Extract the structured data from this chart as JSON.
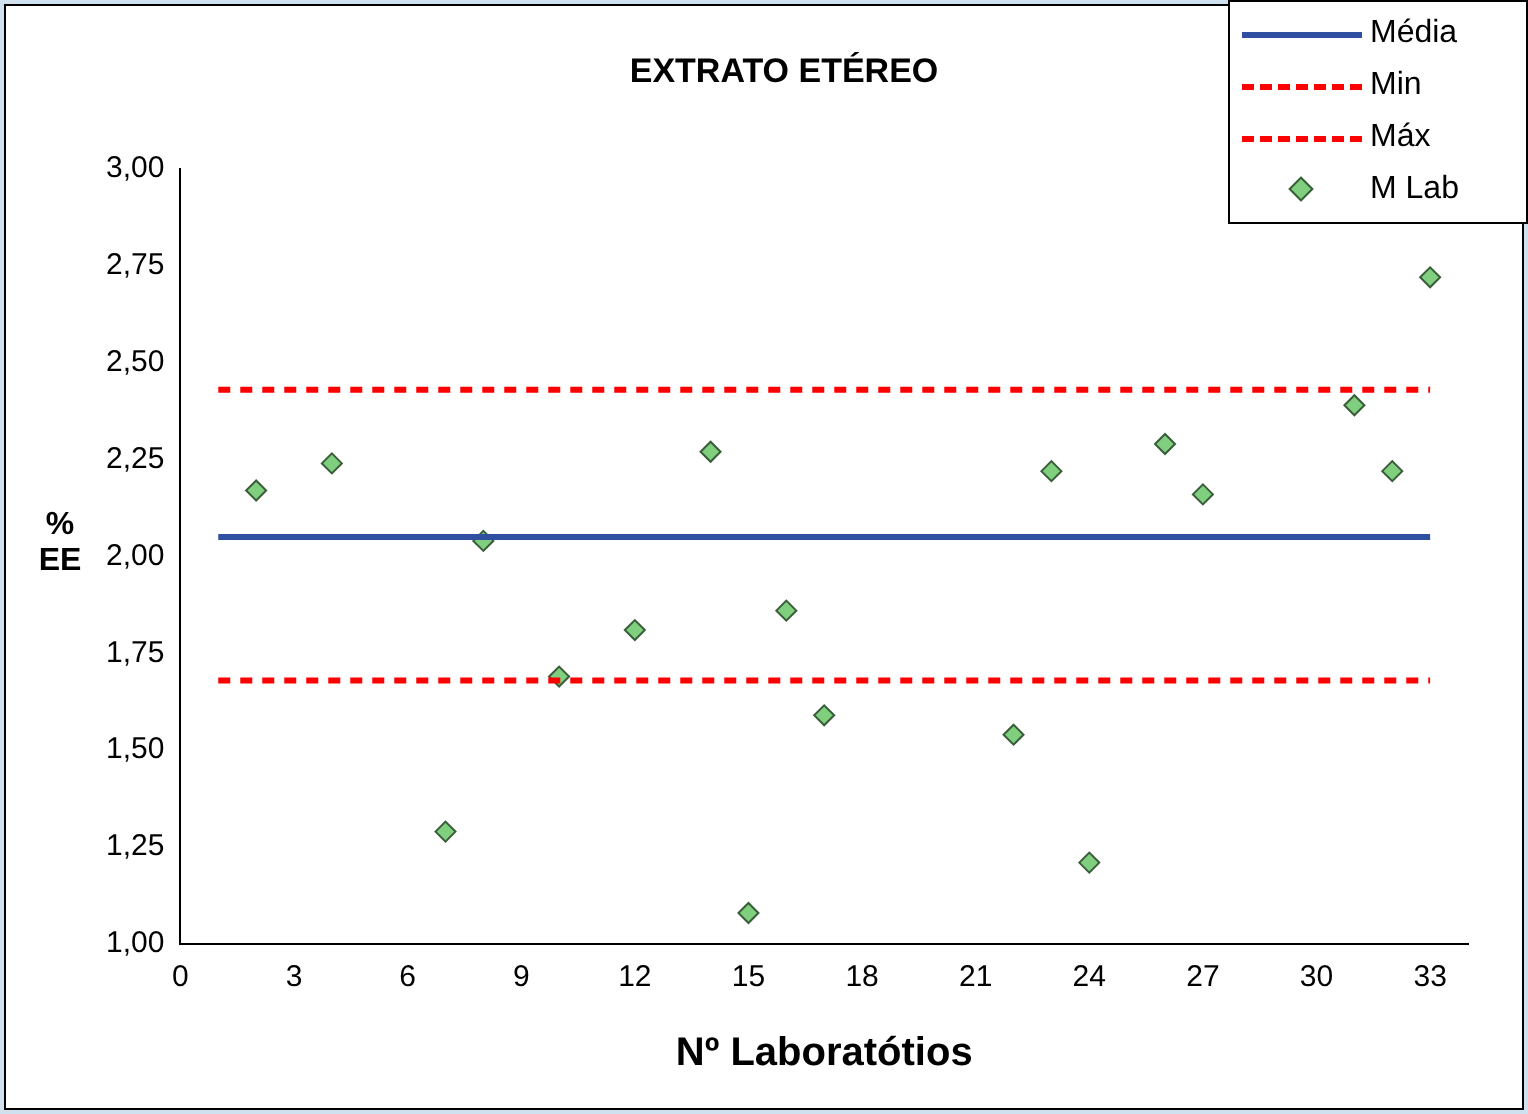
{
  "chart_data": {
    "type": "scatter",
    "title": "EXTRATO ETÉREO",
    "xlabel": "Nº Laboratótios",
    "ylabel": "% EE",
    "xlim": [
      0,
      34
    ],
    "xticks": [
      0,
      3,
      6,
      9,
      12,
      15,
      18,
      21,
      24,
      27,
      30,
      33
    ],
    "ylim": [
      1,
      3
    ],
    "yticks": [
      {
        "value": 1,
        "label": "1,00"
      },
      {
        "value": 1.25,
        "label": "1,25"
      },
      {
        "value": 1.5,
        "label": "1,50"
      },
      {
        "value": 1.75,
        "label": "1,75"
      },
      {
        "value": 2,
        "label": "2,00"
      },
      {
        "value": 2.25,
        "label": "2,25"
      },
      {
        "value": 2.5,
        "label": "2,50"
      },
      {
        "value": 2.75,
        "label": "2,75"
      },
      {
        "value": 3,
        "label": "3,00"
      }
    ],
    "legend": "top right",
    "series": [
      {
        "name": "Média",
        "type": "line",
        "color": "#2f4fa0",
        "line_style": "solid",
        "marker": "none",
        "x": [
          1,
          33
        ],
        "values": [
          2.05,
          2.05
        ]
      },
      {
        "name": "Min",
        "type": "line",
        "color": "#ff0000",
        "line_style": "dashed",
        "marker": "none",
        "x": [
          1,
          33
        ],
        "values": [
          1.68,
          1.68
        ]
      },
      {
        "name": "Máx",
        "type": "line",
        "color": "#ff0000",
        "line_style": "dashed",
        "marker": "none",
        "x": [
          1,
          33
        ],
        "values": [
          2.43,
          2.43
        ]
      },
      {
        "name": "M Lab",
        "type": "scatter",
        "color": "#7fcf7f",
        "marker": "diamond",
        "x": [
          2,
          4,
          7,
          8,
          10,
          12,
          14,
          15,
          16,
          17,
          22,
          23,
          24,
          26,
          27,
          31,
          32,
          33
        ],
        "values": [
          2.17,
          2.24,
          1.29,
          2.04,
          1.69,
          1.81,
          2.27,
          1.08,
          1.86,
          1.59,
          1.54,
          2.22,
          1.21,
          2.29,
          2.16,
          2.39,
          2.22,
          2.72
        ]
      }
    ]
  }
}
